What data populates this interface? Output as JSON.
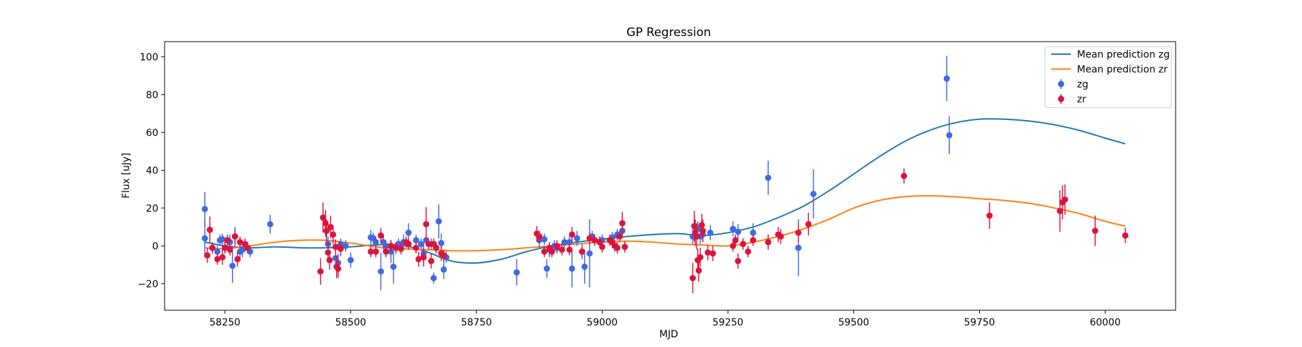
{
  "chart_data": {
    "type": "scatter",
    "title": "GP Regression",
    "xlabel": "MJD",
    "ylabel": "Flux [uJy]",
    "xlim": [
      58130,
      60140
    ],
    "ylim": [
      -34,
      108
    ],
    "xticks": [
      58250,
      58500,
      58750,
      59000,
      59250,
      59500,
      59750,
      60000
    ],
    "yticks": [
      -20,
      0,
      20,
      40,
      60,
      80,
      100
    ],
    "grid": false,
    "legend_position": "top-right",
    "colors": {
      "zg_line": "#1f77b4",
      "zr_line": "#ff7f0e",
      "zg_points": "#4169e1",
      "zr_points": "#dc143c"
    },
    "legend": [
      {
        "label": "Mean prediction zg",
        "kind": "line",
        "series": "zg_line"
      },
      {
        "label": "Mean prediction zr",
        "kind": "line",
        "series": "zr_line"
      },
      {
        "label": "zg",
        "kind": "errorpoint",
        "series": "zg_points"
      },
      {
        "label": "zr",
        "kind": "errorpoint",
        "series": "zr_points"
      }
    ],
    "lines": [
      {
        "name": "Mean prediction zg",
        "x": [
          58210,
          58250,
          58300,
          58350,
          58400,
          58450,
          58500,
          58550,
          58600,
          58650,
          58700,
          58750,
          58800,
          58850,
          58900,
          58950,
          59000,
          59050,
          59100,
          59150,
          59200,
          59250,
          59300,
          59350,
          59400,
          59450,
          59500,
          59550,
          59600,
          59650,
          59700,
          59750,
          59800,
          59850,
          59900,
          59950,
          60000,
          60040
        ],
        "y": [
          2,
          0,
          -1,
          -0.5,
          -1,
          -1,
          -0.5,
          0.5,
          0.5,
          -3,
          -8,
          -9,
          -7,
          -3,
          0,
          2,
          3.5,
          5,
          6,
          6.5,
          5.5,
          7,
          10,
          15,
          21,
          29,
          38,
          47,
          55,
          61,
          65,
          67,
          67,
          66,
          64,
          61,
          57,
          54
        ]
      },
      {
        "name": "Mean prediction zr",
        "x": [
          58210,
          58250,
          58300,
          58350,
          58400,
          58450,
          58500,
          58550,
          58600,
          58650,
          58700,
          58750,
          58800,
          58850,
          58900,
          58950,
          59000,
          59050,
          59100,
          59150,
          59200,
          59250,
          59300,
          59350,
          59400,
          59450,
          59500,
          59550,
          59600,
          59650,
          59700,
          59750,
          59800,
          59850,
          59900,
          59950,
          60000,
          60040
        ],
        "y": [
          -1,
          -1.5,
          0,
          2,
          3,
          3,
          1.5,
          -0.5,
          -1.5,
          -2,
          -2.5,
          -2.5,
          -2,
          -1,
          0,
          1,
          2,
          2.5,
          2,
          1,
          0.5,
          0,
          2,
          5,
          9,
          14,
          20,
          24,
          26,
          26.5,
          26,
          25,
          24,
          22.5,
          20,
          17,
          13,
          10.5
        ]
      }
    ],
    "series": [
      {
        "name": "zg",
        "points": [
          [
            58210,
            19.5,
            9
          ],
          [
            58210,
            4,
            10
          ],
          [
            58225,
            -1,
            3
          ],
          [
            58235,
            -3,
            3
          ],
          [
            58240,
            3,
            3
          ],
          [
            58245,
            3.5,
            3
          ],
          [
            58250,
            -1,
            3
          ],
          [
            58260,
            2,
            4
          ],
          [
            58265,
            -10.5,
            9
          ],
          [
            58270,
            5,
            5
          ],
          [
            58280,
            -3,
            5
          ],
          [
            58285,
            -2,
            4
          ],
          [
            58290,
            0,
            3
          ],
          [
            58300,
            -3,
            3
          ],
          [
            58340,
            11.5,
            5
          ],
          [
            58455,
            1,
            4
          ],
          [
            58470,
            -6.5,
            6
          ],
          [
            58475,
            -9,
            5
          ],
          [
            58480,
            1,
            3
          ],
          [
            58490,
            0,
            3
          ],
          [
            58500,
            -7.5,
            4
          ],
          [
            58540,
            4.5,
            4
          ],
          [
            58545,
            4,
            3
          ],
          [
            58550,
            2,
            3
          ],
          [
            58560,
            -13.5,
            10
          ],
          [
            58565,
            2,
            4
          ],
          [
            58570,
            0,
            3
          ],
          [
            58580,
            -3,
            6
          ],
          [
            58585,
            -11,
            9
          ],
          [
            58595,
            1,
            3
          ],
          [
            58605,
            2,
            4
          ],
          [
            58615,
            7,
            5
          ],
          [
            58630,
            3,
            3
          ],
          [
            58640,
            1,
            3
          ],
          [
            58645,
            -4,
            5
          ],
          [
            58650,
            3,
            3
          ],
          [
            58660,
            1,
            3
          ],
          [
            58665,
            -17,
            3
          ],
          [
            58675,
            13,
            9
          ],
          [
            58680,
            1.5,
            5
          ],
          [
            58685,
            -12.5,
            5
          ],
          [
            58690,
            -6,
            3
          ],
          [
            58830,
            -14,
            7
          ],
          [
            58875,
            3,
            4
          ],
          [
            58885,
            3.5,
            3
          ],
          [
            58890,
            -12,
            5
          ],
          [
            58895,
            -2,
            4
          ],
          [
            58905,
            0,
            3
          ],
          [
            58910,
            -1,
            3
          ],
          [
            58925,
            2,
            3
          ],
          [
            58935,
            2,
            3
          ],
          [
            58940,
            -12,
            10
          ],
          [
            58950,
            4,
            4
          ],
          [
            58960,
            -3,
            4
          ],
          [
            58965,
            -11,
            9
          ],
          [
            58975,
            -4,
            18
          ],
          [
            58980,
            5,
            3
          ],
          [
            59000,
            3,
            3
          ],
          [
            59020,
            4.5,
            3
          ],
          [
            59030,
            6,
            3
          ],
          [
            59040,
            8,
            3
          ],
          [
            59180,
            5,
            4
          ],
          [
            59190,
            9,
            4
          ],
          [
            59195,
            5,
            4
          ],
          [
            59200,
            6,
            4
          ],
          [
            59215,
            7,
            4
          ],
          [
            59260,
            9,
            4
          ],
          [
            59270,
            7.5,
            4
          ],
          [
            59300,
            7,
            5
          ],
          [
            59330,
            36,
            9
          ],
          [
            59390,
            -1,
            15
          ],
          [
            59420,
            27.5,
            13
          ],
          [
            59685,
            88.5,
            12
          ],
          [
            59690,
            58.5,
            10
          ]
        ]
      },
      {
        "name": "zr",
        "points": [
          [
            58215,
            -5,
            4
          ],
          [
            58220,
            8.5,
            7
          ],
          [
            58225,
            -1,
            3
          ],
          [
            58235,
            -7,
            3
          ],
          [
            58245,
            -6,
            4
          ],
          [
            58250,
            -1,
            3
          ],
          [
            58255,
            3,
            3
          ],
          [
            58260,
            -2,
            3
          ],
          [
            58270,
            5,
            4
          ],
          [
            58275,
            -7,
            4
          ],
          [
            58280,
            2,
            3
          ],
          [
            58290,
            1,
            3
          ],
          [
            58295,
            -1,
            3
          ],
          [
            58440,
            -13.5,
            7
          ],
          [
            58445,
            15,
            8
          ],
          [
            58450,
            12,
            7
          ],
          [
            58452,
            8,
            6
          ],
          [
            58455,
            -3.5,
            5
          ],
          [
            58458,
            -7.5,
            5
          ],
          [
            58460,
            10,
            6
          ],
          [
            58465,
            6,
            5
          ],
          [
            58470,
            -0.5,
            4
          ],
          [
            58472,
            -11,
            6
          ],
          [
            58475,
            -12,
            5
          ],
          [
            58480,
            -1.5,
            4
          ],
          [
            58540,
            -3,
            3
          ],
          [
            58550,
            -3,
            3
          ],
          [
            58560,
            5.5,
            4
          ],
          [
            58570,
            -3,
            3
          ],
          [
            58580,
            0,
            3
          ],
          [
            58590,
            -1,
            3
          ],
          [
            58600,
            -1.5,
            3
          ],
          [
            58610,
            2,
            3
          ],
          [
            58615,
            1,
            3
          ],
          [
            58630,
            -1,
            3
          ],
          [
            58635,
            -7,
            4
          ],
          [
            58645,
            -6,
            5
          ],
          [
            58650,
            11.5,
            9
          ],
          [
            58655,
            1,
            3
          ],
          [
            58660,
            -8,
            4
          ],
          [
            58665,
            1,
            3
          ],
          [
            58670,
            -1,
            3
          ],
          [
            58680,
            -4,
            4
          ],
          [
            58685,
            -5,
            3
          ],
          [
            58870,
            6.5,
            4
          ],
          [
            58875,
            5,
            3
          ],
          [
            58885,
            -3,
            3
          ],
          [
            58895,
            -1,
            3
          ],
          [
            58900,
            -3,
            3
          ],
          [
            58910,
            0,
            3
          ],
          [
            58920,
            -2,
            3
          ],
          [
            58935,
            -2,
            3
          ],
          [
            58940,
            6,
            4
          ],
          [
            58960,
            -3,
            3
          ],
          [
            58975,
            4,
            3
          ],
          [
            58985,
            3,
            3
          ],
          [
            58995,
            2,
            3
          ],
          [
            59000,
            -0.5,
            3
          ],
          [
            59015,
            3,
            3
          ],
          [
            59020,
            2,
            3
          ],
          [
            59025,
            0,
            3
          ],
          [
            59030,
            -1,
            3
          ],
          [
            59035,
            5,
            3
          ],
          [
            59040,
            12,
            6
          ],
          [
            59045,
            -0.5,
            3
          ],
          [
            59180,
            -17,
            8
          ],
          [
            59183,
            10.5,
            8
          ],
          [
            59185,
            7,
            7
          ],
          [
            59188,
            5,
            7
          ],
          [
            59190,
            -7.5,
            6
          ],
          [
            59192,
            -13,
            6
          ],
          [
            59195,
            -6,
            5
          ],
          [
            59198,
            11,
            6
          ],
          [
            59200,
            8,
            6
          ],
          [
            59210,
            -3.5,
            4
          ],
          [
            59220,
            -4,
            4
          ],
          [
            59260,
            0,
            3
          ],
          [
            59265,
            3,
            3
          ],
          [
            59270,
            -8,
            4
          ],
          [
            59280,
            1,
            3
          ],
          [
            59290,
            -3,
            3
          ],
          [
            59300,
            3,
            3
          ],
          [
            59330,
            2,
            4
          ],
          [
            59350,
            6,
            4
          ],
          [
            59355,
            5,
            4
          ],
          [
            59390,
            7,
            5
          ],
          [
            59410,
            11.5,
            6
          ],
          [
            59600,
            37,
            4
          ],
          [
            59770,
            16,
            7
          ],
          [
            59910,
            18.5,
            11
          ],
          [
            59915,
            23,
            9
          ],
          [
            59920,
            24.5,
            8
          ],
          [
            59980,
            8,
            8
          ],
          [
            60040,
            5.5,
            4
          ]
        ]
      }
    ]
  }
}
